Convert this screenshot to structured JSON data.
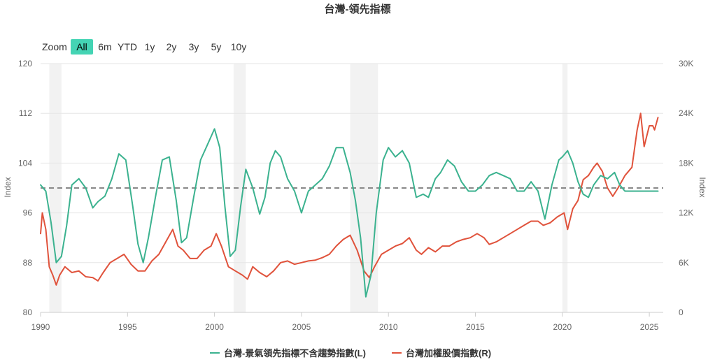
{
  "chart_data": {
    "type": "line",
    "title": "台灣-領先指標",
    "zoom": {
      "label": "Zoom",
      "buttons": [
        "All",
        "6m",
        "YTD",
        "1y",
        "2y",
        "3y",
        "5y",
        "10y"
      ],
      "active": "All"
    },
    "x_range": [
      1990,
      2025.8
    ],
    "x_ticks": [
      "1990",
      "1995",
      "2000",
      "2005",
      "2010",
      "2015",
      "2020",
      "2025"
    ],
    "y_left": {
      "title": "Index",
      "range": [
        80,
        120
      ],
      "ticks": [
        "80",
        "88",
        "96",
        "104",
        "112",
        "120"
      ]
    },
    "y_right": {
      "title": "Index",
      "range": [
        0,
        30000
      ],
      "ticks": [
        "0",
        "6K",
        "12K",
        "18K",
        "24K",
        "30K"
      ]
    },
    "reference_line": 100,
    "recessions": [
      [
        1990.5,
        1991.2
      ],
      [
        2001.1,
        2001.8
      ],
      [
        2007.8,
        2009.4
      ],
      [
        2020.0,
        2020.3
      ]
    ],
    "grid": true,
    "legend_position": "bottom",
    "series": [
      {
        "name": "台灣-景氣領先指標不含趨勢指數(L)",
        "axis": "left",
        "color": "#3bb28f",
        "x": [
          1990.0,
          1990.3,
          1990.6,
          1990.9,
          1991.2,
          1991.5,
          1991.8,
          1992.2,
          1992.6,
          1993.0,
          1993.3,
          1993.7,
          1994.1,
          1994.5,
          1994.9,
          1995.3,
          1995.6,
          1995.9,
          1996.2,
          1996.6,
          1997.0,
          1997.4,
          1997.8,
          1998.1,
          1998.4,
          1998.8,
          1999.2,
          1999.6,
          2000.0,
          2000.3,
          2000.6,
          2000.9,
          2001.2,
          2001.5,
          2001.8,
          2002.2,
          2002.6,
          2002.9,
          2003.2,
          2003.5,
          2003.8,
          2004.2,
          2004.6,
          2005.0,
          2005.4,
          2005.8,
          2006.2,
          2006.6,
          2007.0,
          2007.4,
          2007.8,
          2008.1,
          2008.4,
          2008.7,
          2009.0,
          2009.3,
          2009.7,
          2010.0,
          2010.4,
          2010.8,
          2011.2,
          2011.6,
          2012.0,
          2012.3,
          2012.7,
          2013.0,
          2013.4,
          2013.8,
          2014.2,
          2014.6,
          2015.0,
          2015.4,
          2015.8,
          2016.2,
          2016.6,
          2017.0,
          2017.4,
          2017.8,
          2018.2,
          2018.6,
          2019.0,
          2019.4,
          2019.8,
          2020.0,
          2020.3,
          2020.6,
          2020.9,
          2021.2,
          2021.5,
          2021.8,
          2022.2,
          2022.6,
          2023.0,
          2023.3,
          2023.6,
          2024.0,
          2024.4,
          2024.8,
          2025.2,
          2025.5
        ],
        "y": [
          100.5,
          99.5,
          94.5,
          88.0,
          89.0,
          94.0,
          100.5,
          101.5,
          100.0,
          96.8,
          97.8,
          98.7,
          101.5,
          105.5,
          104.5,
          97.0,
          91.0,
          88.0,
          92.0,
          98.5,
          104.5,
          105.0,
          98.0,
          91.2,
          92.0,
          98.5,
          104.5,
          107.0,
          109.5,
          106.5,
          97.0,
          89.0,
          90.0,
          97.0,
          103.0,
          100.0,
          95.8,
          98.5,
          104.0,
          106.0,
          105.0,
          101.5,
          99.5,
          96.0,
          99.5,
          100.5,
          101.5,
          103.5,
          106.5,
          106.5,
          102.5,
          98.0,
          92.0,
          82.5,
          86.0,
          96.0,
          104.5,
          106.5,
          105.0,
          106.0,
          104.0,
          98.5,
          99.0,
          98.5,
          101.5,
          102.5,
          104.5,
          103.5,
          101.0,
          99.5,
          99.5,
          100.5,
          102.0,
          102.5,
          102.0,
          101.5,
          99.5,
          99.5,
          101.0,
          99.5,
          95.0,
          100.5,
          104.5,
          105.0,
          106.0,
          104.0,
          101.0,
          99.0,
          98.5,
          100.5,
          102.0,
          101.5,
          102.5,
          100.5,
          99.5,
          99.5,
          99.5,
          99.5,
          99.5,
          99.5
        ]
      },
      {
        "name": "台灣加權股價指數(R)",
        "axis": "right",
        "color": "#e0523b",
        "x": [
          1990.0,
          1990.1,
          1990.3,
          1990.5,
          1990.7,
          1990.9,
          1991.1,
          1991.4,
          1991.8,
          1992.2,
          1992.6,
          1993.0,
          1993.3,
          1993.6,
          1994.0,
          1994.4,
          1994.8,
          1995.2,
          1995.6,
          1996.0,
          1996.4,
          1996.8,
          1997.2,
          1997.6,
          1997.9,
          1998.2,
          1998.6,
          1999.0,
          1999.4,
          1999.8,
          2000.1,
          2000.4,
          2000.8,
          2001.2,
          2001.6,
          2001.9,
          2002.2,
          2002.6,
          2003.0,
          2003.4,
          2003.8,
          2004.2,
          2004.6,
          2005.0,
          2005.4,
          2005.8,
          2006.2,
          2006.6,
          2007.0,
          2007.4,
          2007.8,
          2008.2,
          2008.6,
          2008.9,
          2009.2,
          2009.6,
          2010.0,
          2010.4,
          2010.8,
          2011.2,
          2011.6,
          2011.9,
          2012.3,
          2012.7,
          2013.1,
          2013.5,
          2013.9,
          2014.3,
          2014.7,
          2015.1,
          2015.5,
          2015.8,
          2016.2,
          2016.6,
          2017.0,
          2017.4,
          2017.8,
          2018.2,
          2018.6,
          2018.9,
          2019.3,
          2019.7,
          2020.1,
          2020.3,
          2020.6,
          2020.9,
          2021.2,
          2021.5,
          2021.8,
          2022.0,
          2022.3,
          2022.6,
          2022.9,
          2023.2,
          2023.6,
          2024.0,
          2024.3,
          2024.5,
          2024.7,
          2025.0,
          2025.2,
          2025.3,
          2025.5
        ],
        "y": [
          9500,
          12000,
          10000,
          5500,
          4500,
          3300,
          4500,
          5500,
          4800,
          5000,
          4300,
          4200,
          3800,
          4800,
          6000,
          6500,
          7000,
          5800,
          5000,
          5000,
          6200,
          7000,
          8500,
          10000,
          8000,
          7500,
          6500,
          6500,
          7500,
          8000,
          9500,
          8000,
          5500,
          5000,
          4500,
          4000,
          5500,
          4800,
          4300,
          5000,
          6000,
          6200,
          5800,
          6000,
          6200,
          6300,
          6600,
          7000,
          8000,
          8800,
          9300,
          7500,
          5000,
          4200,
          5500,
          7000,
          7500,
          8000,
          8300,
          9000,
          7500,
          7000,
          7800,
          7300,
          8000,
          8000,
          8500,
          8800,
          9000,
          9500,
          9000,
          8200,
          8500,
          9000,
          9500,
          10000,
          10500,
          11000,
          11000,
          10500,
          10800,
          11500,
          12000,
          10000,
          12500,
          13500,
          16000,
          16500,
          17500,
          18000,
          17000,
          15000,
          14000,
          15000,
          16500,
          17500,
          22000,
          24000,
          20000,
          22500,
          22500,
          22000,
          23500
        ]
      }
    ]
  }
}
